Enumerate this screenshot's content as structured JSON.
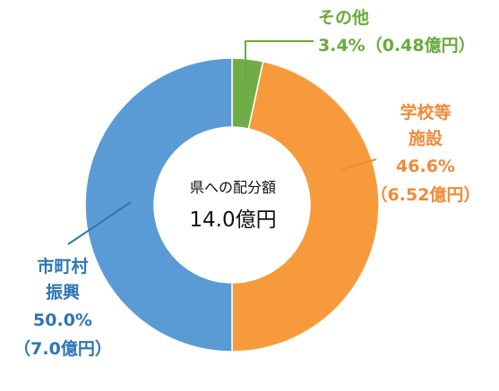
{
  "chart_data": {
    "type": "donut",
    "center_label": "県への配分額",
    "total": 14.0,
    "total_label": "14.0億円",
    "categories": [
      "その他",
      "学校等施設",
      "市町村振興"
    ],
    "values": [
      3.4,
      46.6,
      50.0
    ],
    "value_labels": [
      "3.4%",
      "46.6%",
      "50.0%"
    ],
    "amounts": [
      0.48,
      6.52,
      7.0
    ],
    "amount_labels": [
      "（0.48億円）",
      "（6.52億円）",
      "（7.0億円）"
    ],
    "colors": [
      "#70ad47",
      "#f79a3c",
      "#5b9bd5"
    ],
    "label_colors": [
      "#6aaa3a",
      "#f08a38",
      "#2e75b6"
    ]
  }
}
